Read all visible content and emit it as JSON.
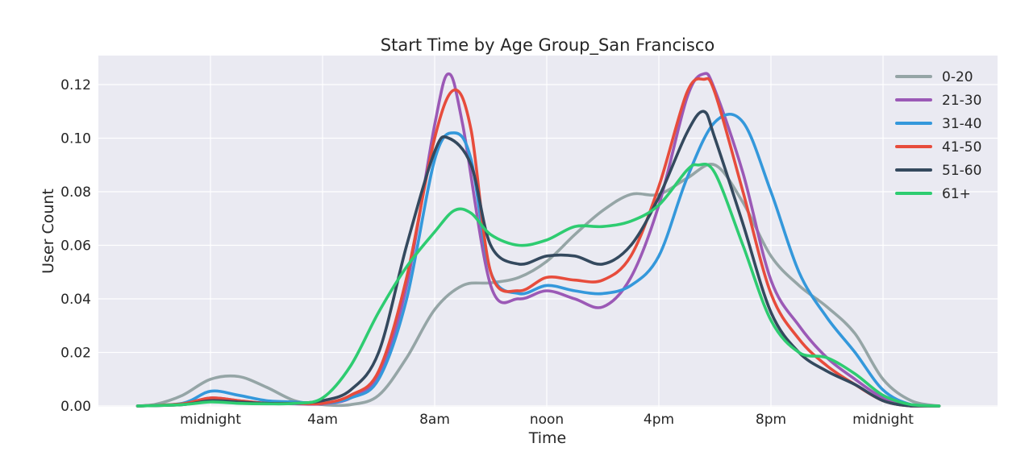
{
  "chart_data": {
    "type": "line",
    "title": "Start Time by Age Group_San Francisco",
    "xlabel": "Time",
    "ylabel": "User Count",
    "xlim": [
      -8,
      32
    ],
    "ylim": [
      0,
      0.131
    ],
    "x_ticks": [
      {
        "value": 0,
        "label": "midnight"
      },
      {
        "value": 4,
        "label": "4am"
      },
      {
        "value": 8,
        "label": "8am"
      },
      {
        "value": 12,
        "label": "noon"
      },
      {
        "value": 16,
        "label": "4pm"
      },
      {
        "value": 20,
        "label": "8pm"
      },
      {
        "value": 24,
        "label": "midnight"
      }
    ],
    "y_ticks": [
      {
        "value": 0.0,
        "label": "0.00"
      },
      {
        "value": 0.02,
        "label": "0.02"
      },
      {
        "value": 0.04,
        "label": "0.04"
      },
      {
        "value": 0.06,
        "label": "0.06"
      },
      {
        "value": 0.08,
        "label": "0.08"
      },
      {
        "value": 0.1,
        "label": "0.10"
      },
      {
        "value": 0.12,
        "label": "0.12"
      }
    ],
    "grid": true,
    "legend_position": "top-right",
    "series": [
      {
        "name": "0-20",
        "color": "#95a5a6",
        "points": [
          [
            -2.6,
            0.0
          ],
          [
            -2,
            0.0005
          ],
          [
            -1,
            0.004
          ],
          [
            0,
            0.01
          ],
          [
            1,
            0.011
          ],
          [
            2,
            0.007
          ],
          [
            3,
            0.002
          ],
          [
            4,
            0.0005
          ],
          [
            5,
            0.0005
          ],
          [
            6,
            0.004
          ],
          [
            7,
            0.018
          ],
          [
            8,
            0.036
          ],
          [
            9,
            0.045
          ],
          [
            10,
            0.046
          ],
          [
            11,
            0.048
          ],
          [
            12,
            0.054
          ],
          [
            13,
            0.064
          ],
          [
            14,
            0.073
          ],
          [
            15,
            0.079
          ],
          [
            16,
            0.079
          ],
          [
            17,
            0.085
          ],
          [
            18,
            0.09
          ],
          [
            19,
            0.076
          ],
          [
            20,
            0.056
          ],
          [
            21,
            0.045
          ],
          [
            22,
            0.037
          ],
          [
            23,
            0.027
          ],
          [
            24,
            0.01
          ],
          [
            25,
            0.002
          ],
          [
            26,
            0.0
          ]
        ]
      },
      {
        "name": "21-30",
        "color": "#9b59b6",
        "points": [
          [
            -2.6,
            0.0
          ],
          [
            -1,
            0.0008
          ],
          [
            0,
            0.003
          ],
          [
            1,
            0.002
          ],
          [
            2,
            0.001
          ],
          [
            3,
            0.0008
          ],
          [
            4,
            0.0008
          ],
          [
            5,
            0.003
          ],
          [
            6,
            0.012
          ],
          [
            7,
            0.045
          ],
          [
            8,
            0.105
          ],
          [
            8.5,
            0.124
          ],
          [
            9,
            0.105
          ],
          [
            10,
            0.045
          ],
          [
            11,
            0.04
          ],
          [
            12,
            0.043
          ],
          [
            13,
            0.04
          ],
          [
            14,
            0.037
          ],
          [
            15,
            0.048
          ],
          [
            16,
            0.075
          ],
          [
            17,
            0.115
          ],
          [
            17.6,
            0.124
          ],
          [
            18,
            0.118
          ],
          [
            19,
            0.087
          ],
          [
            20,
            0.047
          ],
          [
            21,
            0.03
          ],
          [
            22,
            0.018
          ],
          [
            23,
            0.01
          ],
          [
            24,
            0.003
          ],
          [
            25,
            0.0
          ],
          [
            26,
            0.0
          ]
        ]
      },
      {
        "name": "31-40",
        "color": "#3498db",
        "points": [
          [
            -2.6,
            0.0
          ],
          [
            -1,
            0.001
          ],
          [
            0,
            0.0055
          ],
          [
            1,
            0.004
          ],
          [
            2,
            0.002
          ],
          [
            3,
            0.0015
          ],
          [
            4,
            0.001
          ],
          [
            5,
            0.003
          ],
          [
            6,
            0.01
          ],
          [
            7,
            0.04
          ],
          [
            8,
            0.092
          ],
          [
            8.7,
            0.102
          ],
          [
            9.3,
            0.092
          ],
          [
            10,
            0.05
          ],
          [
            11,
            0.042
          ],
          [
            12,
            0.045
          ],
          [
            13,
            0.043
          ],
          [
            14,
            0.042
          ],
          [
            15,
            0.045
          ],
          [
            16,
            0.056
          ],
          [
            17,
            0.085
          ],
          [
            18,
            0.106
          ],
          [
            19,
            0.106
          ],
          [
            20,
            0.08
          ],
          [
            21,
            0.05
          ],
          [
            22,
            0.033
          ],
          [
            23,
            0.02
          ],
          [
            24,
            0.006
          ],
          [
            25,
            0.0005
          ],
          [
            26,
            0.0
          ]
        ]
      },
      {
        "name": "41-50",
        "color": "#e74c3c",
        "points": [
          [
            -2.6,
            0.0
          ],
          [
            -1,
            0.0008
          ],
          [
            0,
            0.003
          ],
          [
            1,
            0.002
          ],
          [
            2,
            0.001
          ],
          [
            3,
            0.001
          ],
          [
            4,
            0.001
          ],
          [
            5,
            0.004
          ],
          [
            6,
            0.013
          ],
          [
            7,
            0.048
          ],
          [
            8,
            0.1
          ],
          [
            8.7,
            0.118
          ],
          [
            9.3,
            0.103
          ],
          [
            10,
            0.05
          ],
          [
            11,
            0.043
          ],
          [
            12,
            0.048
          ],
          [
            13,
            0.047
          ],
          [
            14,
            0.047
          ],
          [
            15,
            0.056
          ],
          [
            16,
            0.082
          ],
          [
            17,
            0.117
          ],
          [
            17.6,
            0.122
          ],
          [
            18,
            0.117
          ],
          [
            19,
            0.08
          ],
          [
            20,
            0.042
          ],
          [
            21,
            0.025
          ],
          [
            22,
            0.015
          ],
          [
            23,
            0.008
          ],
          [
            24,
            0.002
          ],
          [
            25,
            0.0
          ],
          [
            26,
            0.0
          ]
        ]
      },
      {
        "name": "51-60",
        "color": "#34495e",
        "points": [
          [
            -2.6,
            0.0
          ],
          [
            -1,
            0.0005
          ],
          [
            0,
            0.002
          ],
          [
            1,
            0.0015
          ],
          [
            2,
            0.001
          ],
          [
            3,
            0.001
          ],
          [
            4,
            0.002
          ],
          [
            5,
            0.006
          ],
          [
            6,
            0.02
          ],
          [
            7,
            0.06
          ],
          [
            8,
            0.095
          ],
          [
            8.5,
            0.1
          ],
          [
            9.3,
            0.09
          ],
          [
            10,
            0.06
          ],
          [
            11,
            0.053
          ],
          [
            12,
            0.056
          ],
          [
            13,
            0.056
          ],
          [
            14,
            0.053
          ],
          [
            15,
            0.06
          ],
          [
            16,
            0.078
          ],
          [
            17,
            0.102
          ],
          [
            17.6,
            0.11
          ],
          [
            18,
            0.1
          ],
          [
            19,
            0.068
          ],
          [
            20,
            0.035
          ],
          [
            21,
            0.02
          ],
          [
            22,
            0.013
          ],
          [
            23,
            0.008
          ],
          [
            24,
            0.002
          ],
          [
            25,
            0.0
          ],
          [
            26,
            0.0
          ]
        ]
      },
      {
        "name": "61+",
        "color": "#2ecc71",
        "points": [
          [
            -2.6,
            0.0
          ],
          [
            -1,
            0.0005
          ],
          [
            0,
            0.0015
          ],
          [
            1,
            0.001
          ],
          [
            2,
            0.0008
          ],
          [
            3,
            0.001
          ],
          [
            4,
            0.003
          ],
          [
            5,
            0.015
          ],
          [
            6,
            0.035
          ],
          [
            7,
            0.052
          ],
          [
            8,
            0.065
          ],
          [
            8.7,
            0.073
          ],
          [
            9.3,
            0.072
          ],
          [
            10,
            0.064
          ],
          [
            11,
            0.06
          ],
          [
            12,
            0.062
          ],
          [
            13,
            0.067
          ],
          [
            14,
            0.067
          ],
          [
            15,
            0.069
          ],
          [
            16,
            0.075
          ],
          [
            17,
            0.088
          ],
          [
            17.4,
            0.09
          ],
          [
            18,
            0.087
          ],
          [
            19,
            0.06
          ],
          [
            20,
            0.032
          ],
          [
            21,
            0.02
          ],
          [
            22,
            0.018
          ],
          [
            23,
            0.012
          ],
          [
            24,
            0.004
          ],
          [
            25,
            0.0005
          ],
          [
            26,
            0.0
          ]
        ]
      }
    ]
  }
}
